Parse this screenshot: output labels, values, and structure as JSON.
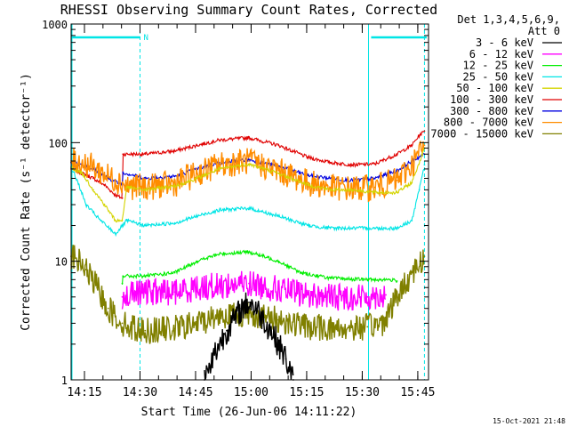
{
  "chart_data": {
    "type": "line",
    "title": "RHESSI Observing Summary Count Rates, Corrected",
    "xlabel": "Start Time (26-Jun-06 14:11:22)",
    "ylabel": "Corrected Count Rate (s⁻¹ detector⁻¹)",
    "y_scale": "log",
    "ylim": [
      1,
      1000
    ],
    "xlim_minutes": [
      0,
      96.5
    ],
    "y_ticks": [
      {
        "v": 1,
        "label": "1"
      },
      {
        "v": 10,
        "label": "10"
      },
      {
        "v": 100,
        "label": "100"
      },
      {
        "v": 1000,
        "label": "1000"
      }
    ],
    "x_ticks": [
      {
        "t": 3.6,
        "label": "14:15"
      },
      {
        "t": 18.6,
        "label": "14:30"
      },
      {
        "t": 33.6,
        "label": "14:45"
      },
      {
        "t": 48.6,
        "label": "15:00"
      },
      {
        "t": 63.6,
        "label": "15:15"
      },
      {
        "t": 78.6,
        "label": "15:30"
      },
      {
        "t": 93.6,
        "label": "15:45"
      }
    ],
    "legend": {
      "position": "right",
      "header": [
        "Det 1,3,4,5,6,9,",
        "Att 0"
      ],
      "entries": [
        {
          "label": "3 - 6 keV",
          "color": "#000000"
        },
        {
          "label": "6 - 12 keV",
          "color": "#ff00ff"
        },
        {
          "label": "12 - 25 keV",
          "color": "#00ee00"
        },
        {
          "label": "25 - 50 keV",
          "color": "#00e5e5"
        },
        {
          "label": "50 - 100 keV",
          "color": "#d4d400"
        },
        {
          "label": "100 - 300 keV",
          "color": "#e00000"
        },
        {
          "label": "300 - 800 keV",
          "color": "#0000e0"
        },
        {
          "label": "800 - 7000 keV",
          "color": "#ff8c00"
        },
        {
          "label": "7000 - 15000 keV",
          "color": "#808000"
        }
      ]
    },
    "annotations": {
      "night_marker": "N",
      "footer_date": "15-Oct-2021 21:48",
      "attenuator_bars_minutes": [
        [
          0,
          18.6
        ],
        [
          81,
          96
        ]
      ],
      "dashed_lines_minutes": [
        18.6,
        95.4
      ],
      "solid_lines_minutes": [
        -2.8,
        80.3
      ]
    },
    "series": [
      {
        "name": "100 - 300 keV",
        "color": "#e00000",
        "points": [
          [
            0,
            60
          ],
          [
            3,
            55
          ],
          [
            6,
            50
          ],
          [
            9,
            44
          ],
          [
            12,
            36
          ],
          [
            13.8,
            34
          ],
          [
            14,
            80
          ],
          [
            20,
            80
          ],
          [
            28,
            85
          ],
          [
            34,
            95
          ],
          [
            40,
            105
          ],
          [
            48,
            110
          ],
          [
            56,
            95
          ],
          [
            64,
            75
          ],
          [
            70,
            68
          ],
          [
            76,
            65
          ],
          [
            82,
            66
          ],
          [
            88,
            80
          ],
          [
            92,
            95
          ],
          [
            94,
            115
          ],
          [
            95.4,
            125
          ]
        ]
      },
      {
        "name": "300 - 800 keV",
        "color": "#0000e0",
        "points": [
          [
            0,
            68
          ],
          [
            3,
            65
          ],
          [
            6,
            60
          ],
          [
            10,
            50
          ],
          [
            13.8,
            44
          ],
          [
            14,
            56
          ],
          [
            20,
            50
          ],
          [
            28,
            52
          ],
          [
            34,
            60
          ],
          [
            40,
            68
          ],
          [
            48,
            72
          ],
          [
            56,
            63
          ],
          [
            64,
            53
          ],
          [
            70,
            50
          ],
          [
            76,
            48
          ],
          [
            82,
            50
          ],
          [
            88,
            58
          ],
          [
            92,
            70
          ],
          [
            95.4,
            80
          ]
        ]
      },
      {
        "name": "800 - 7000 keV",
        "color": "#ff8c00",
        "points": [
          [
            0,
            70
          ],
          [
            3,
            68
          ],
          [
            6,
            62
          ],
          [
            10,
            52
          ],
          [
            13.8,
            46
          ],
          [
            15,
            43
          ],
          [
            20,
            42
          ],
          [
            28,
            45
          ],
          [
            34,
            55
          ],
          [
            40,
            65
          ],
          [
            48,
            70
          ],
          [
            56,
            58
          ],
          [
            64,
            46
          ],
          [
            70,
            42
          ],
          [
            76,
            41
          ],
          [
            82,
            42
          ],
          [
            88,
            48
          ],
          [
            92,
            65
          ],
          [
            95.4,
            95
          ]
        ]
      },
      {
        "name": "50 - 100 keV",
        "color": "#d4d400",
        "points": [
          [
            0,
            62
          ],
          [
            3,
            55
          ],
          [
            6,
            40
          ],
          [
            9,
            30
          ],
          [
            12,
            22
          ],
          [
            13.8,
            22
          ],
          [
            15,
            42
          ],
          [
            20,
            40
          ],
          [
            28,
            43
          ],
          [
            34,
            50
          ],
          [
            40,
            60
          ],
          [
            48,
            66
          ],
          [
            56,
            55
          ],
          [
            64,
            44
          ],
          [
            70,
            40
          ],
          [
            76,
            40
          ],
          [
            82,
            38
          ],
          [
            88,
            38
          ],
          [
            92,
            46
          ],
          [
            95.4,
            90
          ]
        ]
      },
      {
        "name": "25 - 50 keV",
        "color": "#00e5e5",
        "points": [
          [
            0,
            62
          ],
          [
            2,
            45
          ],
          [
            4,
            30
          ],
          [
            8,
            22
          ],
          [
            12,
            17
          ],
          [
            15,
            22
          ],
          [
            20,
            20
          ],
          [
            28,
            21
          ],
          [
            34,
            24
          ],
          [
            40,
            27
          ],
          [
            48,
            28
          ],
          [
            56,
            24
          ],
          [
            64,
            20
          ],
          [
            70,
            19
          ],
          [
            76,
            19
          ],
          [
            82,
            19
          ],
          [
            88,
            19
          ],
          [
            92,
            22
          ],
          [
            94,
            40
          ],
          [
            95.4,
            65
          ]
        ]
      },
      {
        "name": "12 - 25 keV",
        "color": "#00ee00",
        "points": [
          [
            13.8,
            6.5
          ],
          [
            14,
            7.5
          ],
          [
            20,
            7.5
          ],
          [
            28,
            8
          ],
          [
            34,
            10
          ],
          [
            40,
            11.5
          ],
          [
            48,
            12
          ],
          [
            56,
            10
          ],
          [
            62,
            8
          ],
          [
            70,
            7.2
          ],
          [
            80,
            7
          ],
          [
            86,
            7
          ],
          [
            88,
            6.8
          ]
        ]
      },
      {
        "name": "6 - 12 keV",
        "color": "#ff00ff",
        "points": [
          [
            13.8,
            5
          ],
          [
            20,
            5.5
          ],
          [
            28,
            5.5
          ],
          [
            34,
            6
          ],
          [
            40,
            6.2
          ],
          [
            48,
            6.5
          ],
          [
            56,
            5.8
          ],
          [
            64,
            5.2
          ],
          [
            72,
            5
          ],
          [
            80,
            5
          ],
          [
            85,
            5.2
          ]
        ]
      },
      {
        "name": "7000 - 15000 keV",
        "color": "#808000",
        "points": [
          [
            0,
            11
          ],
          [
            2,
            10
          ],
          [
            4,
            8.5
          ],
          [
            7,
            6
          ],
          [
            10,
            4
          ],
          [
            13.8,
            3
          ],
          [
            16,
            2.8
          ],
          [
            20,
            2.6
          ],
          [
            28,
            2.7
          ],
          [
            34,
            3
          ],
          [
            40,
            3.5
          ],
          [
            48,
            3.6
          ],
          [
            56,
            3.2
          ],
          [
            64,
            2.8
          ],
          [
            72,
            2.7
          ],
          [
            80,
            2.8
          ],
          [
            84,
            3
          ],
          [
            88,
            5
          ],
          [
            92,
            8
          ],
          [
            95.4,
            11
          ]
        ]
      },
      {
        "name": "3 - 6 keV",
        "color": "#000000",
        "points": [
          [
            36,
            1
          ],
          [
            38,
            1.5
          ],
          [
            40,
            2
          ],
          [
            42,
            2.6
          ],
          [
            44,
            3.2
          ],
          [
            46,
            4
          ],
          [
            48,
            4.5
          ],
          [
            50,
            4
          ],
          [
            52,
            3.2
          ],
          [
            54,
            2.6
          ],
          [
            56,
            2
          ],
          [
            58,
            1.5
          ],
          [
            60,
            1
          ]
        ]
      }
    ]
  }
}
